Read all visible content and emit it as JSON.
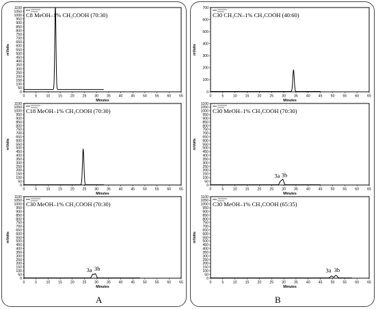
{
  "panel_labels": {
    "left": "A",
    "right": "B"
  },
  "chart_data": [
    {
      "type": "line",
      "panel": "A",
      "title": "C8 MeOH–1% CH₃COOH (70:30)",
      "xlabel": "Minutes",
      "ylabel": "mVolts",
      "xlim": [
        0,
        65
      ],
      "ylim": [
        0,
        1100
      ],
      "xticks": [
        0,
        5,
        10,
        15,
        20,
        25,
        30,
        35,
        40,
        45,
        50,
        55,
        60,
        65
      ],
      "yticks": [
        0,
        50,
        100,
        150,
        200,
        250,
        300,
        350,
        400,
        450,
        500,
        550,
        600,
        650,
        700,
        750,
        800,
        850,
        900,
        950,
        1000,
        1050,
        1100
      ],
      "x_end": 33,
      "baseline": 30,
      "peaks": [
        {
          "x": 13.0,
          "height": 1080,
          "width": 0.25
        }
      ],
      "peak_labels": [],
      "color": "#000000"
    },
    {
      "type": "line",
      "panel": "B",
      "title": "C30 CH₃CN–1% CH₃COOH (40:60)",
      "xlabel": "Minutes",
      "ylabel": "mVolts",
      "xlim": [
        0,
        65
      ],
      "ylim": [
        0,
        700
      ],
      "xticks": [
        0,
        5,
        10,
        15,
        20,
        25,
        30,
        35,
        40,
        45,
        50,
        55,
        60,
        65
      ],
      "yticks": [
        0,
        100,
        200,
        300,
        400,
        500,
        600,
        700
      ],
      "x_end": 45,
      "baseline": 3,
      "peaks": [
        {
          "x": 34.0,
          "height": 178,
          "width": 0.3
        }
      ],
      "peak_labels": [],
      "color": "#000000"
    },
    {
      "type": "line",
      "panel": "A",
      "title": "C18 MeOH–1% CH₃COOH (70:30)",
      "xlabel": "Minutes",
      "ylabel": "mVolts",
      "xlim": [
        0,
        65
      ],
      "ylim": [
        0,
        1100
      ],
      "xticks": [
        0,
        5,
        10,
        15,
        20,
        25,
        30,
        35,
        40,
        45,
        50,
        55,
        60,
        65
      ],
      "yticks": [
        0,
        50,
        100,
        150,
        200,
        250,
        300,
        350,
        400,
        450,
        500,
        550,
        600,
        650,
        700,
        750,
        800,
        850,
        900,
        950,
        1000,
        1050,
        1100
      ],
      "x_end": 33,
      "baseline": 3,
      "peaks": [
        {
          "x": 24.5,
          "height": 480,
          "width": 0.3
        }
      ],
      "peak_labels": [],
      "color": "#000000"
    },
    {
      "type": "line",
      "panel": "B",
      "title": "C30 MeOH–1% CH₃COOH (70:30)",
      "xlabel": "Minutes",
      "ylabel": "mVolts",
      "xlim": [
        0,
        65
      ],
      "ylim": [
        0,
        1100
      ],
      "xticks": [
        0,
        5,
        10,
        15,
        20,
        25,
        30,
        35,
        40,
        45,
        50,
        55,
        60,
        65
      ],
      "yticks": [
        0,
        50,
        100,
        150,
        200,
        250,
        300,
        350,
        400,
        450,
        500,
        550,
        600,
        650,
        700,
        750,
        800,
        850,
        900,
        950,
        1000,
        1050,
        1100
      ],
      "x_end": 45,
      "baseline": 3,
      "peaks": [
        {
          "x": 28.7,
          "height": 45,
          "width": 0.4
        },
        {
          "x": 29.6,
          "height": 70,
          "width": 0.4
        }
      ],
      "peak_labels": [
        {
          "text": "3a",
          "x": 27.3,
          "y": 95
        },
        {
          "text": "3b",
          "x": 30.3,
          "y": 105
        }
      ],
      "color": "#000000"
    },
    {
      "type": "line",
      "panel": "A",
      "title": "C30 MeOH–1% CH₃COOH (70:30)",
      "xlabel": "Minutes",
      "ylabel": "mVolts",
      "xlim": [
        0,
        65
      ],
      "ylim": [
        0,
        1100
      ],
      "xticks": [
        0,
        5,
        10,
        15,
        20,
        25,
        30,
        35,
        40,
        45,
        50,
        55,
        60,
        65
      ],
      "yticks": [
        0,
        50,
        100,
        150,
        200,
        250,
        300,
        350,
        400,
        450,
        500,
        550,
        600,
        650,
        700,
        750,
        800,
        850,
        900,
        950,
        1000,
        1050,
        1100
      ],
      "x_end": 48,
      "baseline": 3,
      "peaks": [
        {
          "x": 28.5,
          "height": 50,
          "width": 0.4
        },
        {
          "x": 29.5,
          "height": 55,
          "width": 0.4
        }
      ],
      "peak_labels": [
        {
          "text": "3a",
          "x": 27.0,
          "y": 85
        },
        {
          "text": "3b",
          "x": 30.3,
          "y": 100
        }
      ],
      "color": "#000000"
    },
    {
      "type": "line",
      "panel": "B",
      "title": "C30 MeOH–1% CH₃COOH (65:35)",
      "xlabel": "Minutes",
      "ylabel": "mVolts",
      "xlim": [
        0,
        65
      ],
      "ylim": [
        0,
        1100
      ],
      "xticks": [
        0,
        5,
        10,
        15,
        20,
        25,
        30,
        35,
        40,
        45,
        50,
        55,
        60,
        65
      ],
      "yticks": [
        0,
        50,
        100,
        150,
        200,
        250,
        300,
        350,
        400,
        450,
        500,
        550,
        600,
        650,
        700,
        750,
        800,
        850,
        900,
        950,
        1000,
        1050,
        1100
      ],
      "x_end": 58,
      "baseline": 3,
      "peaks": [
        {
          "x": 49.6,
          "height": 25,
          "width": 0.5
        },
        {
          "x": 51.4,
          "height": 35,
          "width": 0.5
        }
      ],
      "peak_labels": [
        {
          "text": "3a",
          "x": 48.3,
          "y": 80
        },
        {
          "text": "3b",
          "x": 51.8,
          "y": 85
        }
      ],
      "color": "#000000"
    }
  ]
}
